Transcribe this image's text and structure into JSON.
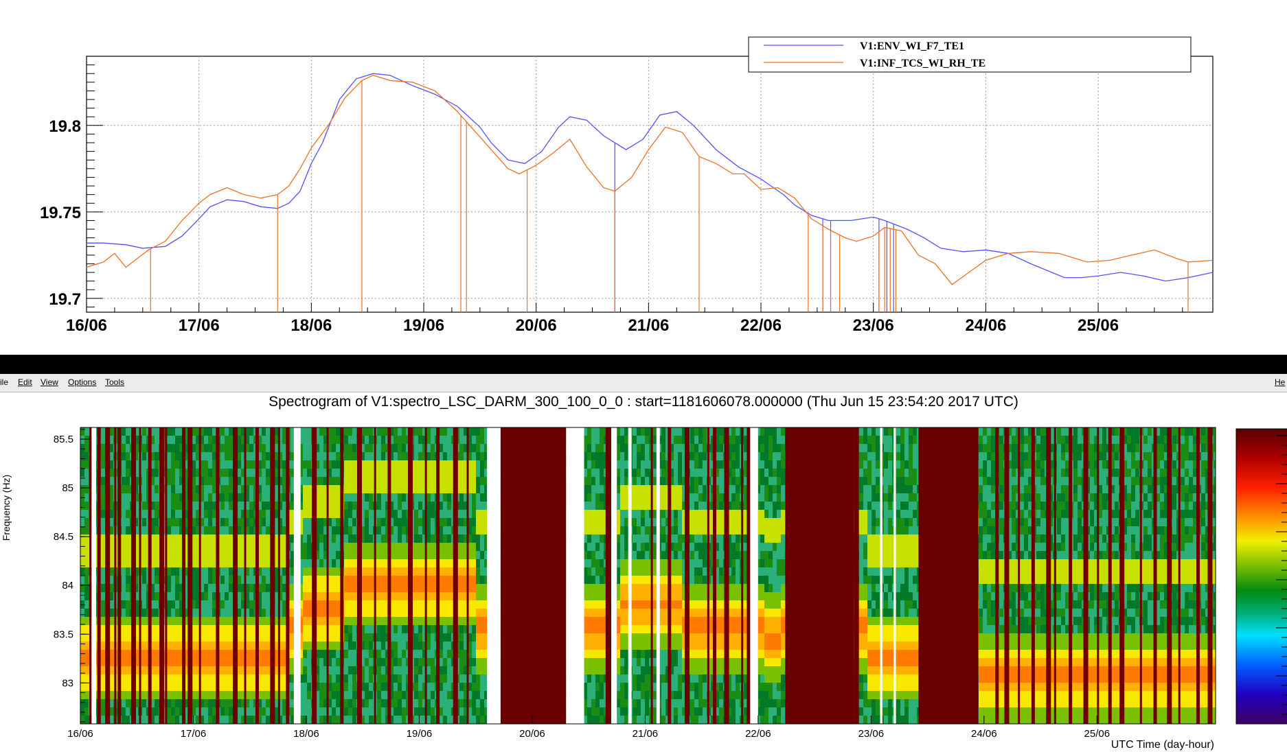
{
  "top_chart": {
    "legend": [
      "V1:ENV_WI_F7_TE1",
      "V1:INF_TCS_WI_RH_TE"
    ],
    "colors": {
      "blue": "#5050ff",
      "orange": "#f07020"
    }
  },
  "menu": {
    "file": "ile",
    "edit": "Edit",
    "view": "View",
    "options": "Options",
    "tools": "Tools",
    "help": "He"
  },
  "spectrogram": {
    "title": "Spectrogram of V1:spectro_LSC_DARM_300_100_0_0 : start=1181606078.000000 (Thu Jun 15 23:54:20 2017 UTC)",
    "ylabel": "Frequency (Hz)",
    "xlabel": "UTC Time (day-hour)"
  },
  "chart_data": [
    {
      "type": "line",
      "title": "",
      "xlabel": "",
      "ylabel": "",
      "x_ticks": [
        "16/06",
        "17/06",
        "18/06",
        "19/06",
        "20/06",
        "21/06",
        "22/06",
        "23/06",
        "24/06",
        "25/06"
      ],
      "y_ticks": [
        19.7,
        19.75,
        19.8
      ],
      "xlim": [
        0,
        10.02
      ],
      "ylim": [
        19.692,
        19.84
      ],
      "grid": true,
      "legend_position": "top-right",
      "x_units": "days from 16/06",
      "series": [
        {
          "name": "V1:ENV_WI_F7_TE1",
          "color": "#5050ff",
          "x": [
            0,
            0.15,
            0.35,
            0.5,
            0.7,
            0.85,
            1.0,
            1.1,
            1.25,
            1.4,
            1.55,
            1.7,
            1.8,
            1.9,
            2.0,
            2.1,
            2.25,
            2.4,
            2.55,
            2.7,
            2.9,
            3.1,
            3.3,
            3.5,
            3.6,
            3.75,
            3.9,
            4.05,
            4.2,
            4.3,
            4.45,
            4.6,
            4.8,
            4.95,
            5.1,
            5.25,
            5.4,
            5.6,
            5.8,
            6.0,
            6.2,
            6.3,
            6.45,
            6.6,
            6.8,
            7.0,
            7.1,
            7.3,
            7.45,
            7.6,
            7.8,
            8.0,
            8.2,
            8.4,
            8.55,
            8.7,
            8.85,
            9.0,
            9.2,
            9.4,
            9.6,
            9.8,
            10.02
          ],
          "y": [
            19.732,
            19.732,
            19.731,
            19.729,
            19.73,
            19.736,
            19.746,
            19.753,
            19.757,
            19.756,
            19.753,
            19.752,
            19.755,
            19.762,
            19.778,
            19.79,
            19.815,
            19.827,
            19.83,
            19.829,
            19.823,
            19.818,
            19.811,
            19.799,
            19.79,
            19.78,
            19.778,
            19.785,
            19.799,
            19.805,
            19.803,
            19.794,
            19.786,
            19.792,
            19.806,
            19.808,
            19.8,
            19.786,
            19.776,
            19.769,
            19.76,
            19.754,
            19.748,
            19.745,
            19.745,
            19.747,
            19.745,
            19.74,
            19.735,
            19.729,
            19.727,
            19.728,
            19.726,
            19.72,
            19.716,
            19.712,
            19.712,
            19.713,
            19.715,
            19.713,
            19.71,
            19.712,
            19.715
          ]
        },
        {
          "name": "V1:INF_TCS_WI_RH_TE",
          "color": "#f07020",
          "x": [
            0,
            0.15,
            0.25,
            0.35,
            0.45,
            0.55,
            0.7,
            0.85,
            1.0,
            1.1,
            1.25,
            1.4,
            1.55,
            1.7,
            1.8,
            1.9,
            2.0,
            2.15,
            2.3,
            2.45,
            2.55,
            2.7,
            2.9,
            3.1,
            3.3,
            3.45,
            3.6,
            3.75,
            3.85,
            4.0,
            4.15,
            4.3,
            4.45,
            4.6,
            4.7,
            4.85,
            5.0,
            5.15,
            5.3,
            5.45,
            5.6,
            5.75,
            5.85,
            6.0,
            6.15,
            6.3,
            6.45,
            6.6,
            6.75,
            6.85,
            7.0,
            7.1,
            7.25,
            7.4,
            7.55,
            7.7,
            7.85,
            8.0,
            8.2,
            8.4,
            8.65,
            8.9,
            9.1,
            9.3,
            9.5,
            9.7,
            9.8,
            10.02
          ],
          "y": [
            19.718,
            19.721,
            19.726,
            19.718,
            19.723,
            19.728,
            19.733,
            19.745,
            19.755,
            19.76,
            19.764,
            19.76,
            19.758,
            19.76,
            19.765,
            19.775,
            19.787,
            19.8,
            19.816,
            19.826,
            19.829,
            19.826,
            19.825,
            19.82,
            19.808,
            19.797,
            19.786,
            19.775,
            19.772,
            19.777,
            19.784,
            19.792,
            19.776,
            19.764,
            19.762,
            19.77,
            19.786,
            19.799,
            19.796,
            19.782,
            19.778,
            19.772,
            19.772,
            19.763,
            19.764,
            19.758,
            19.746,
            19.74,
            19.735,
            19.733,
            19.736,
            19.741,
            19.739,
            19.725,
            19.72,
            19.708,
            19.715,
            19.722,
            19.726,
            19.727,
            19.726,
            19.721,
            19.722,
            19.725,
            19.728,
            19.723,
            19.721,
            19.722
          ]
        }
      ],
      "dropouts": {
        "V1:INF_TCS_WI_RH_TE": [
          0.57,
          1.7,
          2.45,
          3.33,
          3.38,
          3.92,
          4.7,
          5.45,
          6.42,
          6.55,
          6.62,
          6.7,
          7.05,
          7.1,
          7.15,
          7.2,
          9.8
        ],
        "V1:ENV_WI_F7_TE1": [
          4.7,
          6.55,
          6.62,
          7.05,
          7.12,
          7.18
        ]
      }
    },
    {
      "type": "heatmap",
      "title": "Spectrogram of V1:spectro_LSC_DARM_300_100_0_0 : start=1181606078.000000 (Thu Jun 15 23:54:20 2017 UTC)",
      "xlabel": "UTC Time (day-hour)",
      "ylabel": "Frequency (Hz)",
      "x_ticks": [
        "16/06",
        "17/06",
        "18/06",
        "19/06",
        "20/06",
        "21/06",
        "22/06",
        "23/06",
        "24/06",
        "25/06"
      ],
      "y_ticks": [
        83,
        83.5,
        84,
        84.5,
        85,
        85.5
      ],
      "xlim": [
        0,
        10.05
      ],
      "ylim": [
        82.58,
        85.62
      ],
      "peak_frequency_track": [
        {
          "day_from": 0.0,
          "day_to": 1.8,
          "freq": 83.3
        },
        {
          "day_from": 1.95,
          "day_to": 2.3,
          "freq": 83.8
        },
        {
          "day_from": 2.3,
          "day_to": 3.5,
          "freq": 84.05
        },
        {
          "day_from": 4.75,
          "day_to": 5.3,
          "freq": 83.85
        },
        {
          "day_from": 6.05,
          "day_to": 6.2,
          "freq": 83.5
        },
        {
          "day_from": 6.95,
          "day_to": 7.45,
          "freq": 83.3
        },
        {
          "day_from": 7.95,
          "day_to": 10.05,
          "freq": 83.1
        }
      ]
    }
  ]
}
